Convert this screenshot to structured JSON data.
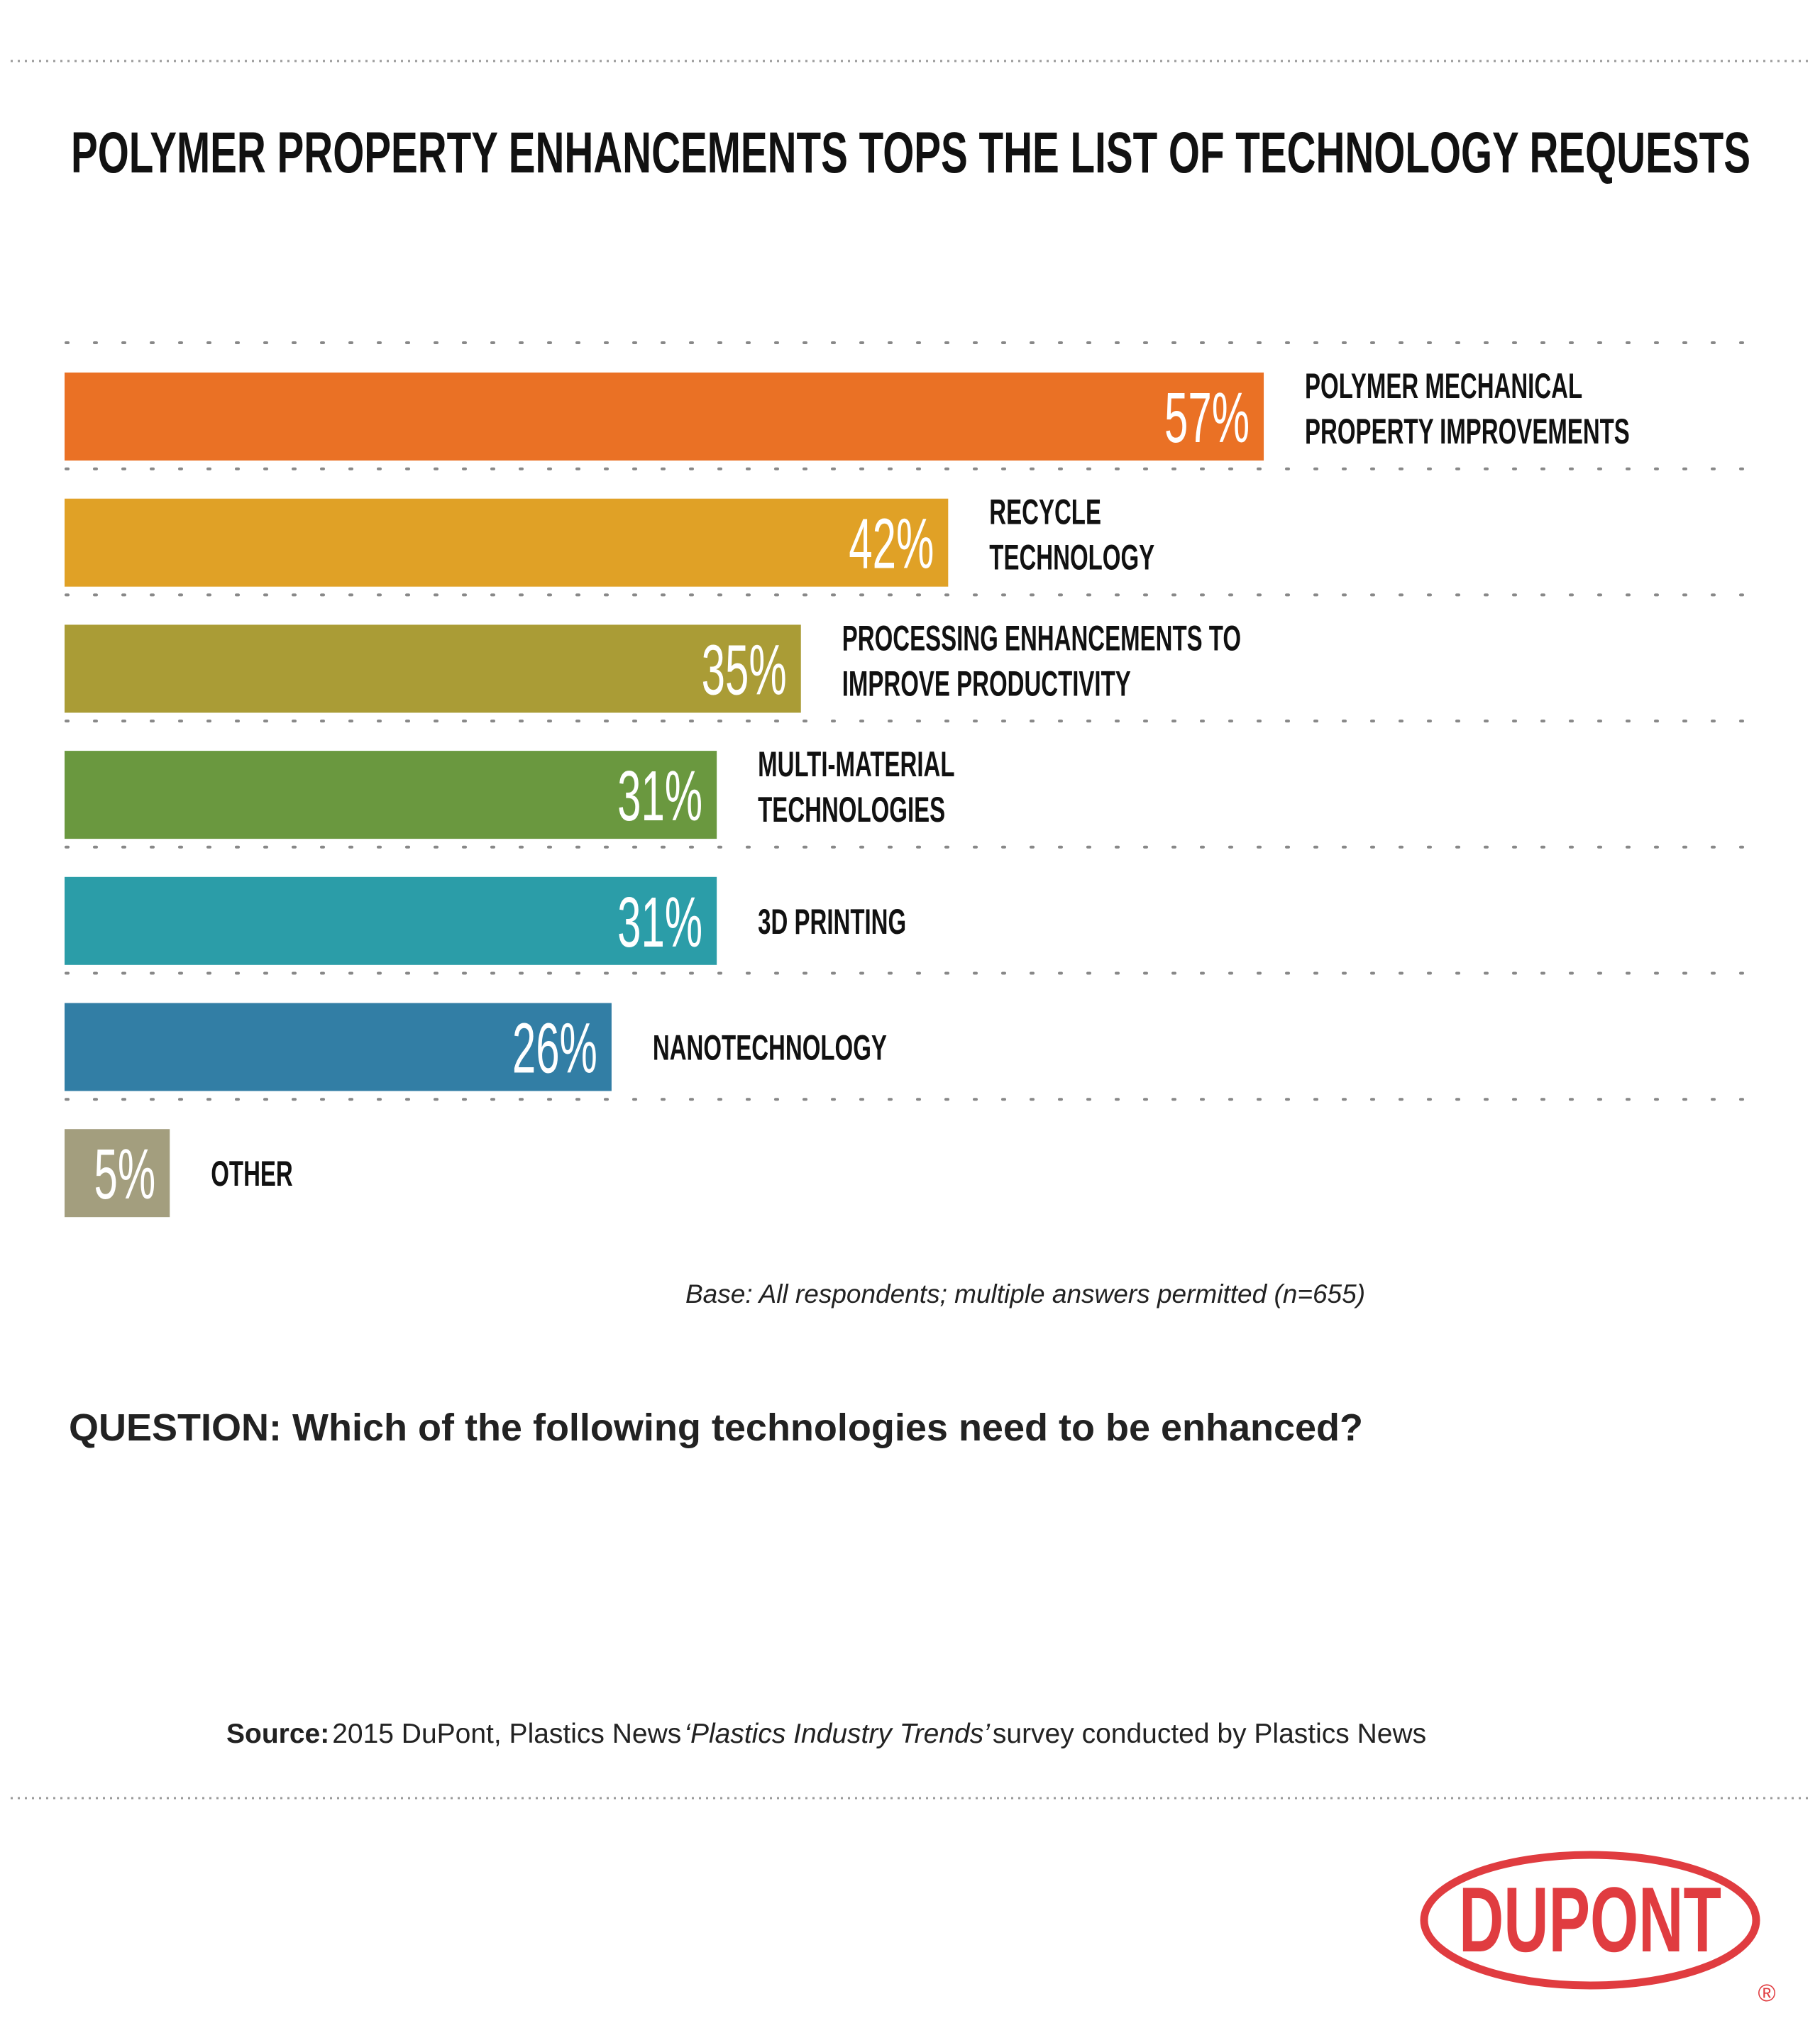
{
  "chart_data": {
    "type": "bar",
    "orientation": "horizontal",
    "title": "POLYMER PROPERTY ENHANCEMENTS TOPS THE LIST OF TECHNOLOGY REQUESTS",
    "xlabel": "",
    "ylabel": "",
    "xlim": [
      0,
      100
    ],
    "grid": "dotted separators between bars",
    "categories": [
      [
        "POLYMER MECHANICAL",
        "PROPERTY IMPROVEMENTS"
      ],
      [
        "RECYCLE",
        "TECHNOLOGY"
      ],
      [
        "PROCESSING ENHANCEMENTS TO",
        "IMPROVE PRODUCTIVITY"
      ],
      [
        "MULTI-MATERIAL",
        "TECHNOLOGIES"
      ],
      [
        "3D PRINTING"
      ],
      [
        "NANOTECHNOLOGY"
      ],
      [
        "OTHER"
      ]
    ],
    "values": [
      57,
      42,
      35,
      31,
      31,
      26,
      5
    ],
    "value_labels": [
      "57%",
      "42%",
      "35%",
      "31%",
      "31%",
      "26%",
      "5%"
    ],
    "colors": [
      "#EA7125",
      "#E0A126",
      "#AA9C36",
      "#6A983F",
      "#2B9DA8",
      "#327EA5",
      "#A39E7E"
    ]
  },
  "notes": {
    "base": "Base: All respondents; multiple answers permitted (n=655)",
    "question": "QUESTION: Which of the following technologies need to be enhanced?",
    "source_label": "Source:",
    "source_pre": " 2015 DuPont, Plastics News ",
    "source_italic": "‘Plastics Industry Trends’",
    "source_post": " survey conducted by Plastics News"
  },
  "logo": {
    "text": "DUPONT",
    "mark": "®",
    "color": "#E03C40"
  }
}
